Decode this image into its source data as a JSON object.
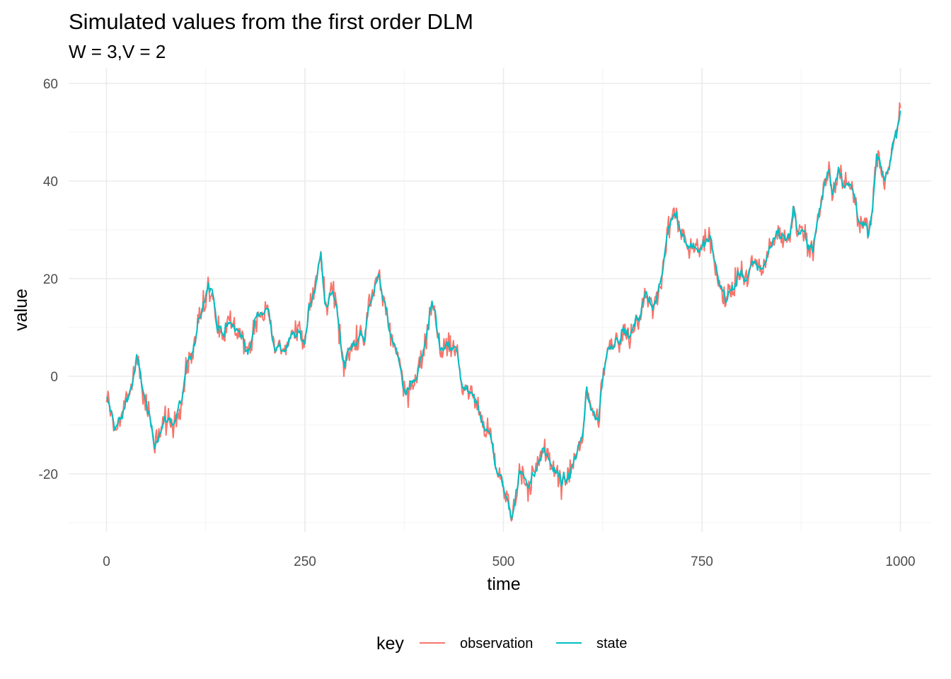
{
  "chart_data": {
    "type": "line",
    "title": "Simulated values from the first order DLM",
    "subtitle": "W = 3,V = 2",
    "xlabel": "time",
    "ylabel": "value",
    "xlim": [
      0,
      1000
    ],
    "ylim": [
      -30,
      60
    ],
    "x_ticks": [
      0,
      250,
      500,
      750,
      1000
    ],
    "y_ticks": [
      -20,
      0,
      20,
      40,
      60
    ],
    "grid": true,
    "legend": {
      "title": "key",
      "position": "bottom"
    },
    "series": [
      {
        "name": "observation",
        "color": "#F8766D",
        "noise_sd": 1.414
      },
      {
        "name": "state",
        "color": "#00BFC4"
      }
    ],
    "state_anchors": [
      [
        0,
        -5
      ],
      [
        10,
        -10
      ],
      [
        20,
        -9
      ],
      [
        25,
        -5
      ],
      [
        33,
        -1
      ],
      [
        38,
        3
      ],
      [
        45,
        -2
      ],
      [
        55,
        -10
      ],
      [
        60,
        -14
      ],
      [
        65,
        -11
      ],
      [
        75,
        -9
      ],
      [
        85,
        -9
      ],
      [
        95,
        -5
      ],
      [
        100,
        0
      ],
      [
        110,
        5
      ],
      [
        120,
        14
      ],
      [
        127,
        19
      ],
      [
        133,
        20
      ],
      [
        140,
        10
      ],
      [
        150,
        10
      ],
      [
        160,
        10
      ],
      [
        170,
        8
      ],
      [
        180,
        5
      ],
      [
        190,
        13
      ],
      [
        200,
        14
      ],
      [
        205,
        13
      ],
      [
        210,
        8
      ],
      [
        220,
        5
      ],
      [
        230,
        7
      ],
      [
        240,
        8
      ],
      [
        250,
        7
      ],
      [
        255,
        15
      ],
      [
        265,
        20
      ],
      [
        270,
        25
      ],
      [
        275,
        15
      ],
      [
        285,
        17
      ],
      [
        290,
        14
      ],
      [
        295,
        8
      ],
      [
        300,
        2
      ],
      [
        305,
        5
      ],
      [
        310,
        5
      ],
      [
        320,
        9
      ],
      [
        325,
        8
      ],
      [
        335,
        18
      ],
      [
        340,
        20
      ],
      [
        345,
        19
      ],
      [
        350,
        15
      ],
      [
        355,
        10
      ],
      [
        365,
        5
      ],
      [
        375,
        -3
      ],
      [
        385,
        -2
      ],
      [
        390,
        -1
      ],
      [
        395,
        2
      ],
      [
        400,
        5
      ],
      [
        410,
        13
      ],
      [
        415,
        12
      ],
      [
        420,
        5
      ],
      [
        430,
        5
      ],
      [
        440,
        5
      ],
      [
        450,
        -3
      ],
      [
        460,
        -5
      ],
      [
        470,
        -8
      ],
      [
        480,
        -10
      ],
      [
        490,
        -18
      ],
      [
        500,
        -23
      ],
      [
        505,
        -26
      ],
      [
        510,
        -28
      ],
      [
        520,
        -20
      ],
      [
        530,
        -21
      ],
      [
        540,
        -20
      ],
      [
        550,
        -15
      ],
      [
        560,
        -18
      ],
      [
        570,
        -21
      ],
      [
        580,
        -22
      ],
      [
        590,
        -17
      ],
      [
        600,
        -12
      ],
      [
        605,
        -3
      ],
      [
        610,
        -8
      ],
      [
        620,
        -8
      ],
      [
        625,
        0
      ],
      [
        630,
        5
      ],
      [
        640,
        8
      ],
      [
        650,
        10
      ],
      [
        660,
        8
      ],
      [
        670,
        12
      ],
      [
        680,
        17
      ],
      [
        690,
        15
      ],
      [
        700,
        20
      ],
      [
        705,
        28
      ],
      [
        712,
        33
      ],
      [
        718,
        35
      ],
      [
        723,
        30
      ],
      [
        730,
        28
      ],
      [
        740,
        27
      ],
      [
        750,
        26
      ],
      [
        760,
        28
      ],
      [
        770,
        20
      ],
      [
        780,
        16
      ],
      [
        790,
        18
      ],
      [
        800,
        22
      ],
      [
        805,
        20
      ],
      [
        815,
        22
      ],
      [
        825,
        22
      ],
      [
        835,
        26
      ],
      [
        845,
        30
      ],
      [
        852,
        29
      ],
      [
        860,
        28
      ],
      [
        865,
        35
      ],
      [
        870,
        30
      ],
      [
        880,
        28
      ],
      [
        890,
        27
      ],
      [
        900,
        35
      ],
      [
        905,
        40
      ],
      [
        910,
        42
      ],
      [
        915,
        38
      ],
      [
        922,
        44
      ],
      [
        930,
        40
      ],
      [
        940,
        38
      ],
      [
        950,
        32
      ],
      [
        960,
        28
      ],
      [
        965,
        34
      ],
      [
        970,
        44
      ],
      [
        980,
        40
      ],
      [
        985,
        42
      ],
      [
        990,
        48
      ],
      [
        995,
        50
      ],
      [
        1000,
        56
      ]
    ]
  }
}
